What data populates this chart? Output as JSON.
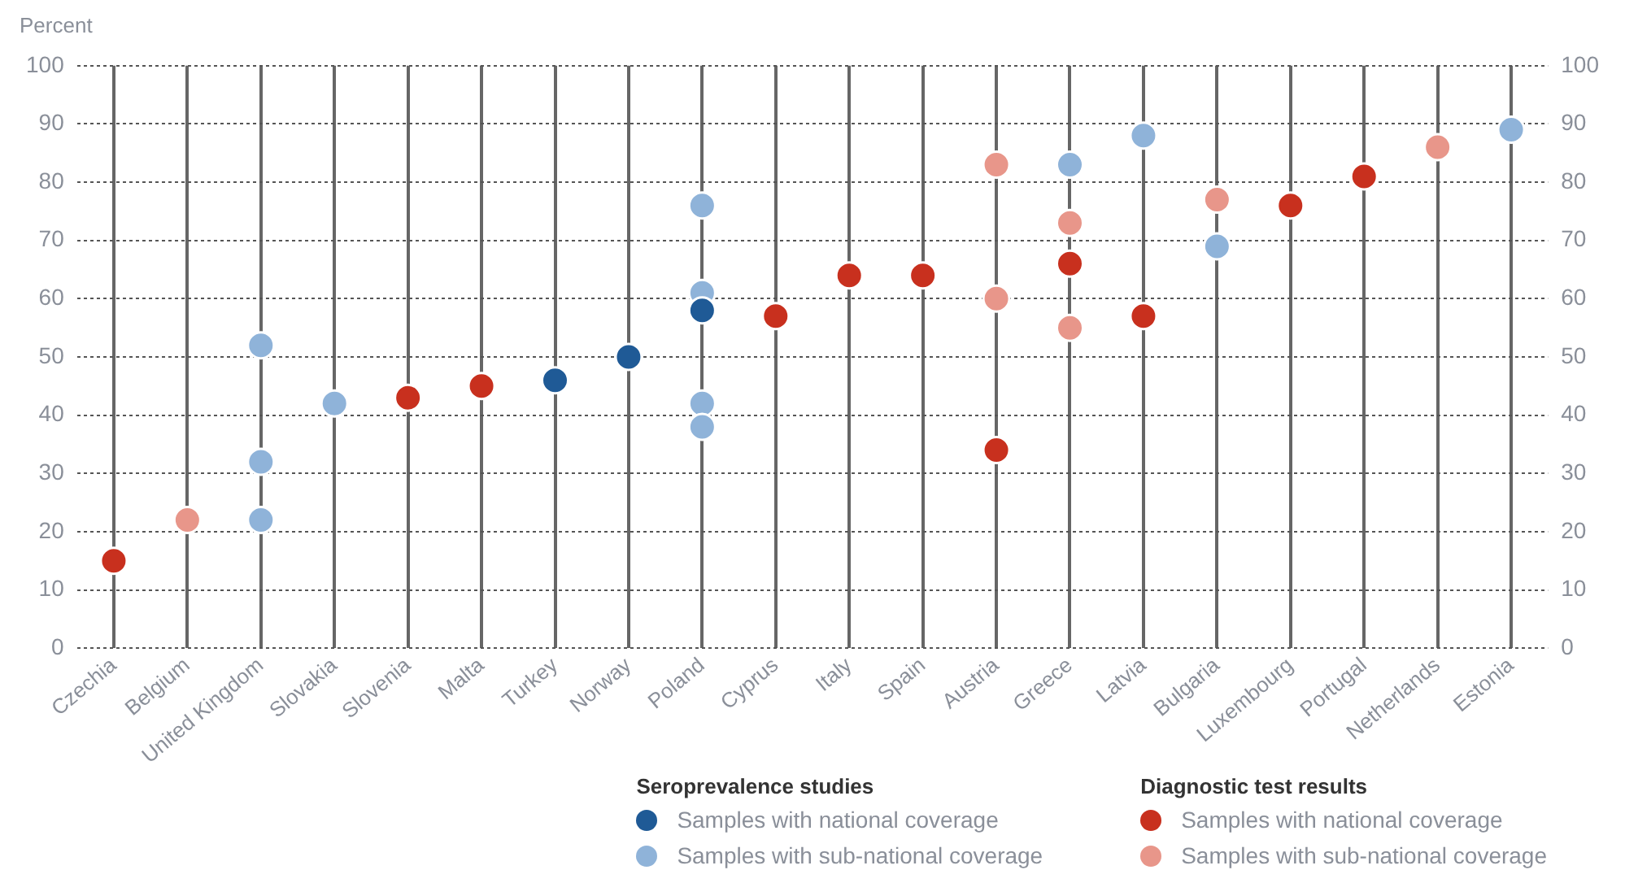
{
  "chart_data": {
    "type": "scatter",
    "ylabel": "Percent",
    "categories": [
      "Czechia",
      "Belgium",
      "United Kingdom",
      "Slovakia",
      "Slovenia",
      "Malta",
      "Turkey",
      "Norway",
      "Poland",
      "Cyprus",
      "Italy",
      "Spain",
      "Austria",
      "Greece",
      "Latvia",
      "Bulgaria",
      "Luxembourg",
      "Portugal",
      "Netherlands",
      "Estonia"
    ],
    "series": [
      {
        "name": "Samples with national coverage",
        "color": "#1f5a96",
        "x": [
          "Turkey",
          "Norway",
          "Poland"
        ],
        "values": [
          46,
          50,
          58
        ]
      },
      {
        "name": "Samples with sub-national coverage",
        "color": "#8fb3d9",
        "x": [
          "United Kingdom",
          "United Kingdom",
          "United Kingdom",
          "Slovakia",
          "Poland",
          "Poland",
          "Poland",
          "Poland",
          "Greece",
          "Latvia",
          "Bulgaria",
          "Estonia"
        ],
        "values": [
          52,
          32,
          22,
          42,
          76,
          61,
          42,
          38,
          83,
          88,
          69,
          89
        ]
      },
      {
        "name": "Samples with national coverage",
        "color": "#c8301e",
        "x": [
          "Czechia",
          "Slovenia",
          "Malta",
          "Cyprus",
          "Italy",
          "Spain",
          "Austria",
          "Greece",
          "Latvia",
          "Luxembourg",
          "Portugal"
        ],
        "values": [
          15,
          43,
          45,
          57,
          64,
          64,
          34,
          66,
          57,
          76,
          81
        ]
      },
      {
        "name": "Samples with sub-national coverage",
        "color": "#e8968a",
        "x": [
          "Belgium",
          "Austria",
          "Austria",
          "Austria",
          "Greece",
          "Greece",
          "Greece",
          "Bulgaria",
          "Netherlands"
        ],
        "values": [
          22,
          83,
          null,
          60,
          73,
          null,
          55,
          77,
          86
        ]
      }
    ],
    "annotations": [
      "Seroprevalence studies",
      "Diagnostic test results"
    ],
    "ylim": [
      0,
      100
    ],
    "yticks": [
      0,
      10,
      20,
      30,
      40,
      50,
      60,
      70,
      80,
      90,
      100
    ],
    "y2lim": [
      0,
      100
    ],
    "y2ticks": [
      0,
      10,
      20,
      30,
      40,
      50,
      60,
      70,
      80,
      90,
      100
    ],
    "grid": true,
    "legend": "bottom",
    "marker": "circle"
  }
}
